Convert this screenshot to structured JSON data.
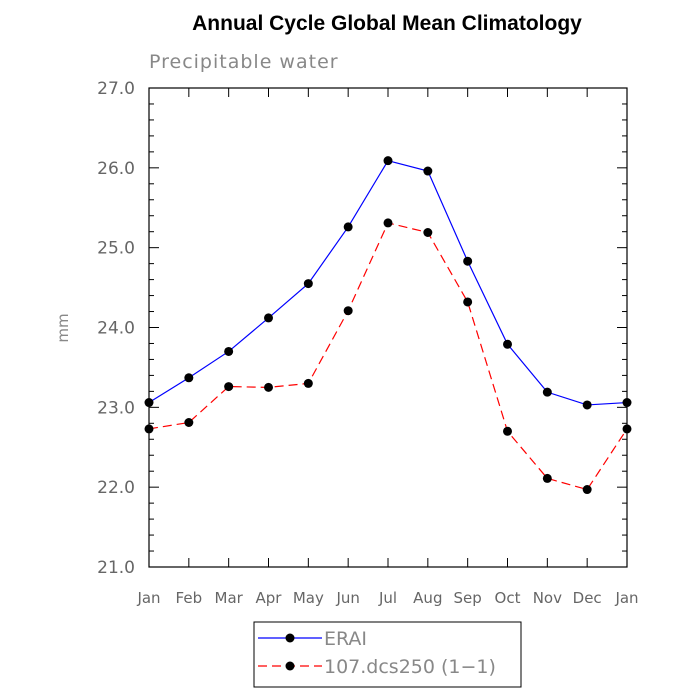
{
  "chart_data": {
    "type": "line",
    "title": "Annual Cycle Global Mean Climatology",
    "subtitle": "Precipitable water",
    "xlabel": "",
    "ylabel": "mm",
    "categories": [
      "Jan",
      "Feb",
      "Mar",
      "Apr",
      "May",
      "Jun",
      "Jul",
      "Aug",
      "Sep",
      "Oct",
      "Nov",
      "Dec",
      "Jan"
    ],
    "ylim": [
      21.0,
      27.0
    ],
    "yticks": [
      "21.0",
      "22.0",
      "23.0",
      "24.0",
      "25.0",
      "26.0",
      "27.0"
    ],
    "series": [
      {
        "name": "ERAI",
        "color": "#0000ff",
        "dash": "solid",
        "values": [
          23.06,
          23.37,
          23.7,
          24.12,
          24.55,
          25.26,
          26.09,
          25.96,
          24.83,
          23.79,
          23.19,
          23.03,
          23.06
        ]
      },
      {
        "name": "107.dcs250 (1−1)",
        "color": "#ff0000",
        "dash": "dashed",
        "values": [
          22.73,
          22.81,
          23.26,
          23.25,
          23.3,
          24.21,
          25.31,
          25.19,
          24.32,
          22.7,
          22.11,
          21.97,
          22.73
        ]
      }
    ],
    "legend_position": "bottom-center"
  }
}
